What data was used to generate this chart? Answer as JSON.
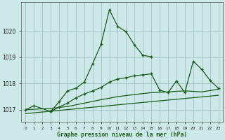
{
  "title": "Graphe pression niveau de la mer (hPa)",
  "background_color": "#cce8e8",
  "grid_color": "#99bbbb",
  "line_color": "#1a5c1a",
  "xlim": [
    -0.5,
    23.5
  ],
  "ylim": [
    1016.55,
    1021.1
  ],
  "yticks": [
    1017,
    1018,
    1019,
    1020
  ],
  "xtick_labels": [
    "0",
    "1",
    "2",
    "3",
    "4",
    "5",
    "6",
    "7",
    "8",
    "9",
    "10",
    "11",
    "12",
    "13",
    "14",
    "15",
    "16",
    "17",
    "18",
    "19",
    "20",
    "21",
    "22",
    "23"
  ],
  "line1_x": [
    0,
    1,
    3,
    4,
    5,
    6,
    7,
    8,
    9,
    10,
    11,
    12,
    13,
    14,
    15
  ],
  "line1_y": [
    1017.0,
    1017.15,
    1016.93,
    1017.3,
    1017.72,
    1017.82,
    1018.05,
    1018.75,
    1019.5,
    1020.82,
    1020.18,
    1019.98,
    1019.47,
    1019.08,
    1019.02
  ],
  "line2_x": [
    3,
    4,
    5,
    6,
    7,
    8,
    9,
    10,
    11,
    12,
    13,
    14,
    15,
    16,
    17,
    18,
    19,
    20,
    21,
    22,
    23
  ],
  "line2_y": [
    1016.93,
    1017.1,
    1017.25,
    1017.45,
    1017.6,
    1017.72,
    1017.85,
    1018.05,
    1018.18,
    1018.22,
    1018.3,
    1018.33,
    1018.37,
    1017.75,
    1017.65,
    1018.1,
    1017.65,
    1018.85,
    1018.55,
    1018.12,
    1017.82
  ],
  "line3_x": [
    0,
    3,
    5,
    7,
    9,
    11,
    13,
    15,
    17,
    19,
    21,
    23
  ],
  "line3_y": [
    1017.0,
    1017.05,
    1017.12,
    1017.25,
    1017.38,
    1017.5,
    1017.58,
    1017.65,
    1017.68,
    1017.72,
    1017.68,
    1017.78
  ],
  "line4_x": [
    0,
    23
  ],
  "line4_y": [
    1016.85,
    1017.55
  ]
}
